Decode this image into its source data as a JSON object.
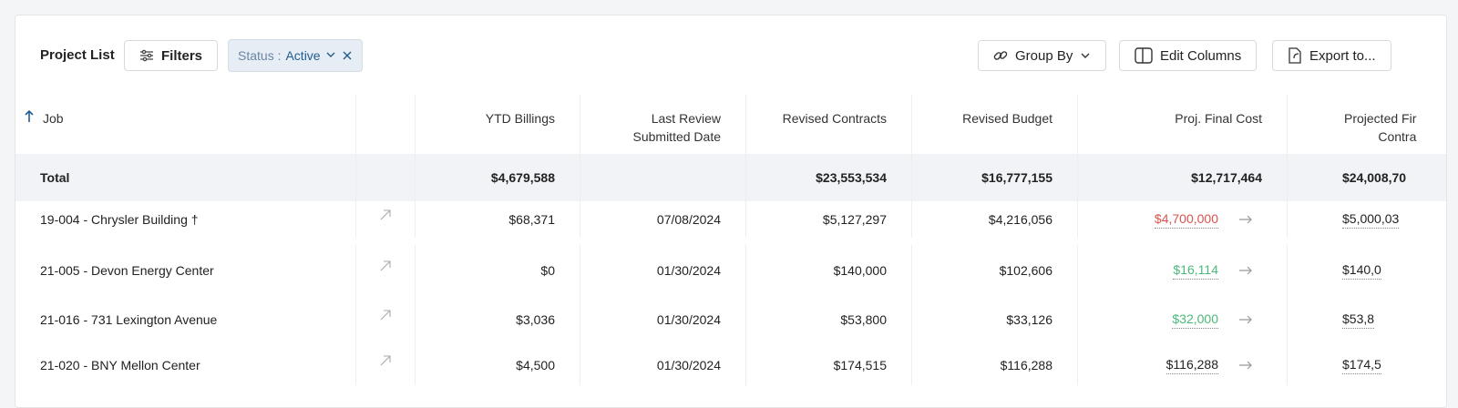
{
  "toolbar": {
    "title": "Project List",
    "filters": "Filters",
    "status_label": "Status :",
    "status_value": "Active",
    "group_by": "Group By",
    "edit_columns": "Edit Columns",
    "export": "Export to..."
  },
  "table": {
    "headers": [
      "Job",
      "YTD Billings",
      "Last Review\nSubmitted Date",
      "Revised Contracts",
      "Revised Budget",
      "Proj. Final Cost",
      "Projected Fir\nContra"
    ],
    "total": [
      "Total",
      "$4,679,588",
      null,
      "$23,553,534",
      "$16,777,155",
      "$12,717,464",
      "$24,008,70"
    ],
    "rows": [
      [
        "19-004 - Chrysler Building †",
        "$68,371",
        "07/08/2024",
        "$5,127,297",
        "$4,216,056",
        "$4,700,000",
        "$5,000,03"
      ],
      [
        "21-005 - Devon Energy Center",
        "$0",
        "01/30/2024",
        "$140,000",
        "$102,606",
        "$16,114",
        "$140,0"
      ],
      [
        "21-016 - 731 Lexington Avenue",
        "$3,036",
        "01/30/2024",
        "$53,800",
        "$33,126",
        "$32,000",
        "$53,8"
      ],
      [
        "21-020 - BNY Mellon Center",
        "$4,500",
        "01/30/2024",
        "$174,515",
        "$116,288",
        "$116,288",
        "$174,5"
      ]
    ],
    "final_cost_colors": [
      "#d9534f",
      "#4cb97a",
      "#4cb97a",
      "#222222"
    ]
  }
}
